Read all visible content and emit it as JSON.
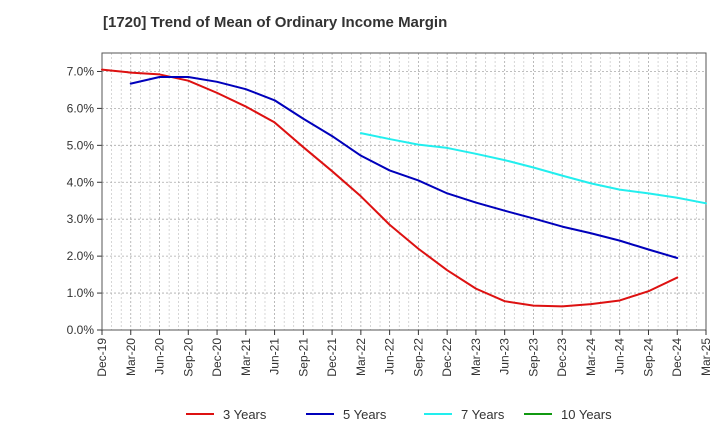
{
  "chart_data": {
    "type": "line",
    "title": "[1720]  Trend of Mean of Ordinary Income Margin",
    "xlabel": "",
    "ylabel": "",
    "ylim": [
      0,
      7.5
    ],
    "y_ticks": [
      0,
      1,
      2,
      3,
      4,
      5,
      6,
      7
    ],
    "y_tick_labels": [
      "0.0%",
      "1.0%",
      "2.0%",
      "3.0%",
      "4.0%",
      "5.0%",
      "6.0%",
      "7.0%"
    ],
    "x_tick_labels": [
      "Dec-19",
      "Mar-20",
      "Jun-20",
      "Sep-20",
      "Dec-20",
      "Mar-21",
      "Jun-21",
      "Sep-21",
      "Dec-21",
      "Mar-22",
      "Jun-22",
      "Sep-22",
      "Dec-22",
      "Mar-23",
      "Jun-23",
      "Sep-23",
      "Dec-23",
      "Mar-24",
      "Jun-24",
      "Sep-24",
      "Dec-24",
      "Mar-25"
    ],
    "grid": true,
    "legend_position": "bottom",
    "series": [
      {
        "name": "3 Years",
        "color": "#dd1111",
        "start_index": 0,
        "values": [
          7.05,
          6.97,
          6.92,
          6.75,
          6.42,
          6.05,
          5.62,
          4.95,
          4.3,
          3.62,
          2.85,
          2.2,
          1.62,
          1.12,
          0.78,
          0.66,
          0.64,
          0.7,
          0.8,
          1.05,
          1.42
        ]
      },
      {
        "name": "5 Years",
        "color": "#0000bb",
        "start_index": 1,
        "values": [
          6.67,
          6.85,
          6.85,
          6.72,
          6.52,
          6.22,
          5.72,
          5.25,
          4.72,
          4.32,
          4.05,
          3.7,
          3.45,
          3.23,
          3.02,
          2.8,
          2.62,
          2.42,
          2.18,
          1.95
        ]
      },
      {
        "name": "7 Years",
        "color": "#22eeee",
        "start_index": 9,
        "values": [
          5.33,
          5.17,
          5.02,
          4.93,
          4.77,
          4.6,
          4.4,
          4.18,
          3.97,
          3.8,
          3.7,
          3.58,
          3.43
        ]
      },
      {
        "name": "10 Years",
        "color": "#119911",
        "start_index": 0,
        "values": []
      }
    ]
  }
}
